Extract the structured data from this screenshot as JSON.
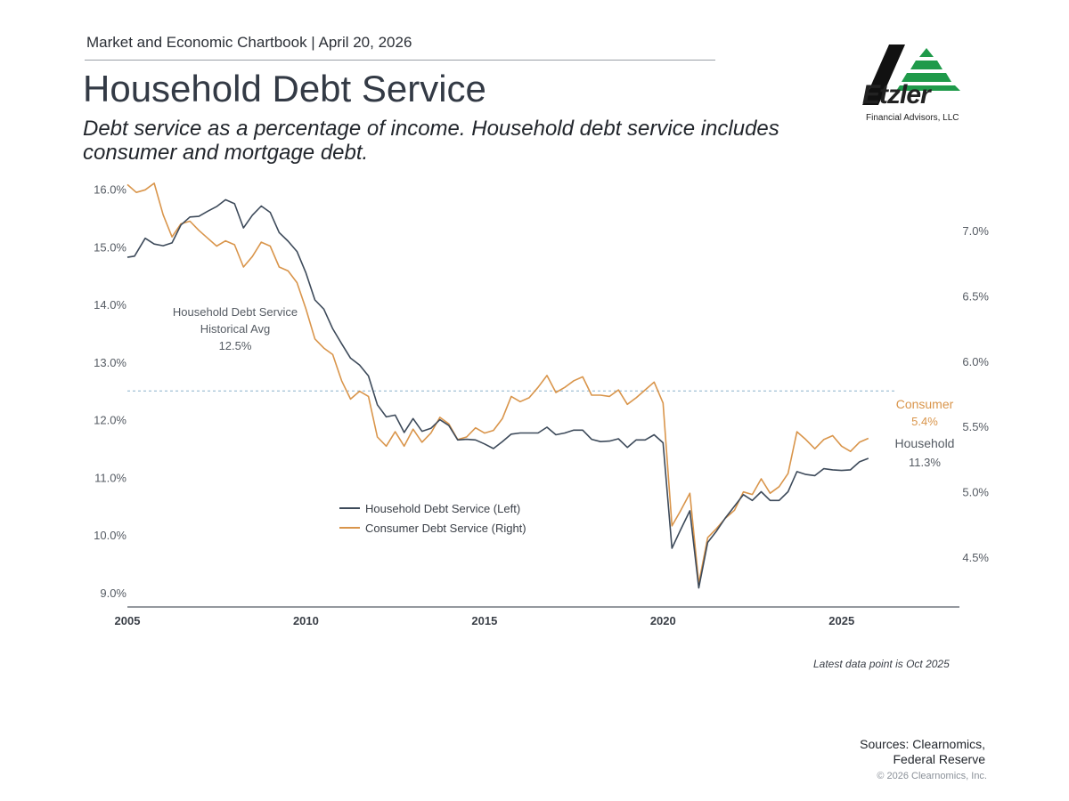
{
  "header": {
    "chartbook": "Market and Economic Chartbook | April 20, 2026",
    "title": "Household Debt Service",
    "subtitle": "Debt service as a percentage of income. Household debt service includes consumer and mortgage debt."
  },
  "logo": {
    "name": "Etzler",
    "tagline": "Financial Advisors, LLC"
  },
  "colors": {
    "household": "#3d4a5a",
    "consumer": "#d9954b",
    "avg_line": "#8ab0cc",
    "axis": "#555b63"
  },
  "chart_data": {
    "type": "line",
    "x_range": [
      2005,
      2028.3
    ],
    "x_ticks": [
      2005,
      2010,
      2015,
      2020,
      2025
    ],
    "y_left": {
      "range": [
        8.75,
        16.15
      ],
      "ticks": [
        9,
        10,
        11,
        12,
        13,
        14,
        15,
        16
      ],
      "tick_labels": [
        "9.0%",
        "10.0%",
        "11.0%",
        "12.0%",
        "13.0%",
        "14.0%",
        "15.0%",
        "16.0%"
      ]
    },
    "y_right": {
      "range": [
        4.12,
        7.38
      ],
      "ticks": [
        4.5,
        5.0,
        5.5,
        6.0,
        6.5,
        7.0
      ],
      "tick_labels": [
        "4.5%",
        "5.0%",
        "5.5%",
        "6.0%",
        "6.5%",
        "7.0%"
      ]
    },
    "historical_avg": {
      "value": 12.5,
      "label_lines": [
        "Household Debt Service",
        "Historical Avg",
        "12.5%"
      ]
    },
    "series": [
      {
        "name": "Household Debt Service (Left)",
        "axis": "left",
        "points": [
          [
            2005.0,
            14.82
          ],
          [
            2005.2,
            14.84
          ],
          [
            2005.5,
            15.15
          ],
          [
            2005.75,
            15.05
          ],
          [
            2006.0,
            15.02
          ],
          [
            2006.25,
            15.07
          ],
          [
            2006.5,
            15.38
          ],
          [
            2006.75,
            15.52
          ],
          [
            2007.0,
            15.53
          ],
          [
            2007.25,
            15.62
          ],
          [
            2007.5,
            15.7
          ],
          [
            2007.75,
            15.82
          ],
          [
            2008.0,
            15.75
          ],
          [
            2008.25,
            15.33
          ],
          [
            2008.5,
            15.55
          ],
          [
            2008.75,
            15.71
          ],
          [
            2009.0,
            15.6
          ],
          [
            2009.25,
            15.25
          ],
          [
            2009.5,
            15.1
          ],
          [
            2009.75,
            14.92
          ],
          [
            2010.0,
            14.55
          ],
          [
            2010.25,
            14.08
          ],
          [
            2010.5,
            13.92
          ],
          [
            2010.75,
            13.58
          ],
          [
            2011.0,
            13.32
          ],
          [
            2011.25,
            13.07
          ],
          [
            2011.5,
            12.95
          ],
          [
            2011.75,
            12.76
          ],
          [
            2012.0,
            12.26
          ],
          [
            2012.25,
            12.05
          ],
          [
            2012.5,
            12.08
          ],
          [
            2012.75,
            11.78
          ],
          [
            2013.0,
            12.02
          ],
          [
            2013.25,
            11.8
          ],
          [
            2013.5,
            11.85
          ],
          [
            2013.75,
            12.0
          ],
          [
            2014.0,
            11.9
          ],
          [
            2014.25,
            11.65
          ],
          [
            2014.5,
            11.66
          ],
          [
            2014.75,
            11.65
          ],
          [
            2015.0,
            11.58
          ],
          [
            2015.25,
            11.5
          ],
          [
            2015.5,
            11.62
          ],
          [
            2015.75,
            11.75
          ],
          [
            2016.0,
            11.77
          ],
          [
            2016.25,
            11.77
          ],
          [
            2016.5,
            11.77
          ],
          [
            2016.75,
            11.87
          ],
          [
            2017.0,
            11.74
          ],
          [
            2017.25,
            11.77
          ],
          [
            2017.5,
            11.82
          ],
          [
            2017.75,
            11.82
          ],
          [
            2018.0,
            11.66
          ],
          [
            2018.25,
            11.62
          ],
          [
            2018.5,
            11.63
          ],
          [
            2018.75,
            11.67
          ],
          [
            2019.0,
            11.52
          ],
          [
            2019.25,
            11.65
          ],
          [
            2019.5,
            11.65
          ],
          [
            2019.75,
            11.74
          ],
          [
            2020.0,
            11.6
          ],
          [
            2020.25,
            9.77
          ],
          [
            2020.5,
            10.1
          ],
          [
            2020.75,
            10.42
          ],
          [
            2021.0,
            9.08
          ],
          [
            2021.25,
            9.87
          ],
          [
            2021.5,
            10.07
          ],
          [
            2021.75,
            10.3
          ],
          [
            2022.0,
            10.5
          ],
          [
            2022.25,
            10.7
          ],
          [
            2022.5,
            10.6
          ],
          [
            2022.75,
            10.75
          ],
          [
            2023.0,
            10.6
          ],
          [
            2023.25,
            10.6
          ],
          [
            2023.5,
            10.75
          ],
          [
            2023.75,
            11.1
          ],
          [
            2024.0,
            11.05
          ],
          [
            2024.25,
            11.03
          ],
          [
            2024.5,
            11.15
          ],
          [
            2024.75,
            11.13
          ],
          [
            2025.0,
            11.12
          ],
          [
            2025.25,
            11.13
          ],
          [
            2025.5,
            11.27
          ],
          [
            2025.75,
            11.33
          ]
        ]
      },
      {
        "name": "Consumer Debt Service (Right)",
        "axis": "right",
        "points": [
          [
            2005.0,
            7.35
          ],
          [
            2005.25,
            7.29
          ],
          [
            2005.5,
            7.31
          ],
          [
            2005.75,
            7.36
          ],
          [
            2006.0,
            7.12
          ],
          [
            2006.25,
            6.95
          ],
          [
            2006.5,
            7.05
          ],
          [
            2006.75,
            7.07
          ],
          [
            2007.0,
            7.0
          ],
          [
            2007.25,
            6.94
          ],
          [
            2007.5,
            6.88
          ],
          [
            2007.75,
            6.92
          ],
          [
            2008.0,
            6.89
          ],
          [
            2008.25,
            6.72
          ],
          [
            2008.5,
            6.8
          ],
          [
            2008.75,
            6.91
          ],
          [
            2009.0,
            6.88
          ],
          [
            2009.25,
            6.72
          ],
          [
            2009.5,
            6.69
          ],
          [
            2009.75,
            6.6
          ],
          [
            2010.0,
            6.4
          ],
          [
            2010.25,
            6.17
          ],
          [
            2010.5,
            6.1
          ],
          [
            2010.75,
            6.05
          ],
          [
            2011.0,
            5.85
          ],
          [
            2011.25,
            5.71
          ],
          [
            2011.5,
            5.77
          ],
          [
            2011.75,
            5.73
          ],
          [
            2012.0,
            5.42
          ],
          [
            2012.25,
            5.35
          ],
          [
            2012.5,
            5.46
          ],
          [
            2012.75,
            5.35
          ],
          [
            2013.0,
            5.48
          ],
          [
            2013.25,
            5.38
          ],
          [
            2013.5,
            5.45
          ],
          [
            2013.75,
            5.57
          ],
          [
            2014.0,
            5.52
          ],
          [
            2014.25,
            5.4
          ],
          [
            2014.5,
            5.42
          ],
          [
            2014.75,
            5.49
          ],
          [
            2015.0,
            5.45
          ],
          [
            2015.25,
            5.47
          ],
          [
            2015.5,
            5.56
          ],
          [
            2015.75,
            5.73
          ],
          [
            2016.0,
            5.69
          ],
          [
            2016.25,
            5.72
          ],
          [
            2016.5,
            5.8
          ],
          [
            2016.75,
            5.89
          ],
          [
            2017.0,
            5.76
          ],
          [
            2017.25,
            5.8
          ],
          [
            2017.5,
            5.85
          ],
          [
            2017.75,
            5.88
          ],
          [
            2018.0,
            5.74
          ],
          [
            2018.25,
            5.74
          ],
          [
            2018.5,
            5.73
          ],
          [
            2018.75,
            5.78
          ],
          [
            2019.0,
            5.67
          ],
          [
            2019.25,
            5.72
          ],
          [
            2019.5,
            5.78
          ],
          [
            2019.75,
            5.84
          ],
          [
            2020.0,
            5.68
          ],
          [
            2020.25,
            4.74
          ],
          [
            2020.5,
            4.86
          ],
          [
            2020.75,
            4.99
          ],
          [
            2021.0,
            4.3
          ],
          [
            2021.25,
            4.65
          ],
          [
            2021.5,
            4.72
          ],
          [
            2021.75,
            4.8
          ],
          [
            2022.0,
            4.86
          ],
          [
            2022.25,
            5.0
          ],
          [
            2022.5,
            4.98
          ],
          [
            2022.75,
            5.1
          ],
          [
            2023.0,
            4.99
          ],
          [
            2023.25,
            5.04
          ],
          [
            2023.5,
            5.14
          ],
          [
            2023.75,
            5.46
          ],
          [
            2024.0,
            5.4
          ],
          [
            2024.25,
            5.33
          ],
          [
            2024.5,
            5.4
          ],
          [
            2024.75,
            5.43
          ],
          [
            2025.0,
            5.35
          ],
          [
            2025.25,
            5.31
          ],
          [
            2025.5,
            5.38
          ],
          [
            2025.75,
            5.41
          ]
        ]
      }
    ],
    "legend": {
      "position": "center",
      "items": [
        "Household Debt Service (Left)",
        "Consumer Debt Service (Right)"
      ]
    },
    "end_labels": {
      "consumer": [
        "Consumer",
        "5.4%"
      ],
      "household": [
        "Household",
        "11.3%"
      ]
    },
    "footnote": "Latest data point is Oct 2025"
  },
  "footer": {
    "sources_line1": "Sources: Clearnomics,",
    "sources_line2": "Federal Reserve",
    "copyright": "© 2026 Clearnomics, Inc."
  }
}
